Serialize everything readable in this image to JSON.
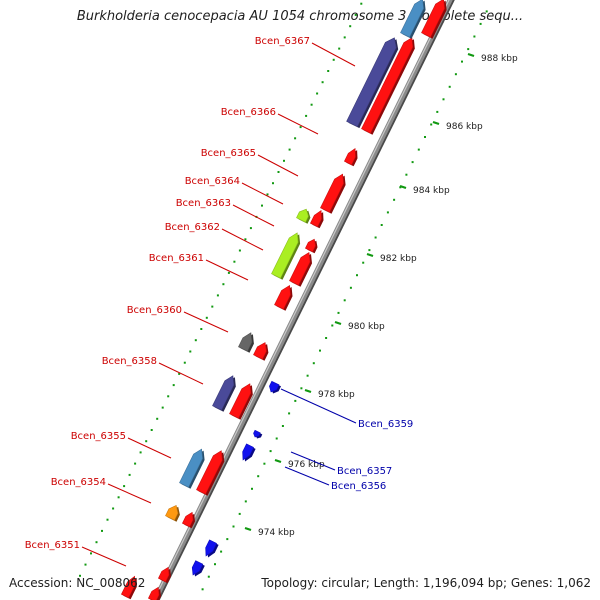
{
  "title": "Burkholderia cenocepacia AU 1054 chromosome 3, complete sequ...",
  "footer": {
    "accession": "Accession: NC_008062",
    "summary": "Topology: circular; Length: 1,196,094 bp; Genes: 1,062"
  },
  "colors": {
    "forward_label": "#cc0000",
    "reverse_label": "#0000aa",
    "backbone": "#8a8a8a",
    "tick": "#119911",
    "red": "#ff1111",
    "navy": "#4a4a99",
    "steelblue": "#4a8fc4",
    "lime": "#aaee22",
    "gray": "#666666",
    "orange": "#ff9911",
    "blue": "#1111ee"
  },
  "scale_ticks": [
    {
      "label": "974 kbp"
    },
    {
      "label": "976 kbp"
    },
    {
      "label": "978 kbp"
    },
    {
      "label": "980 kbp"
    },
    {
      "label": "982 kbp"
    },
    {
      "label": "984 kbp"
    },
    {
      "label": "986 kbp"
    },
    {
      "label": "988 kbp"
    }
  ],
  "gene_labels": [
    {
      "name": "Bcen_6367",
      "strand": "forward"
    },
    {
      "name": "Bcen_6366",
      "strand": "forward"
    },
    {
      "name": "Bcen_6365",
      "strand": "forward"
    },
    {
      "name": "Bcen_6364",
      "strand": "forward"
    },
    {
      "name": "Bcen_6363",
      "strand": "forward"
    },
    {
      "name": "Bcen_6362",
      "strand": "forward"
    },
    {
      "name": "Bcen_6361",
      "strand": "forward"
    },
    {
      "name": "Bcen_6360",
      "strand": "forward"
    },
    {
      "name": "Bcen_6358",
      "strand": "forward"
    },
    {
      "name": "Bcen_6355",
      "strand": "forward"
    },
    {
      "name": "Bcen_6354",
      "strand": "forward"
    },
    {
      "name": "Bcen_6351",
      "strand": "forward"
    },
    {
      "name": "Bcen_6359",
      "strand": "reverse"
    },
    {
      "name": "Bcen_6357",
      "strand": "reverse"
    },
    {
      "name": "Bcen_6356",
      "strand": "reverse"
    }
  ]
}
